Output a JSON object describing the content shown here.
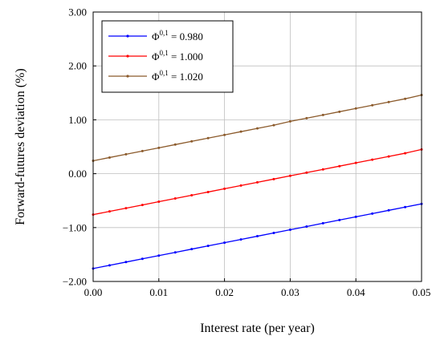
{
  "chart_data": {
    "type": "line",
    "xlabel": "Interest rate (per year)",
    "ylabel": "Forward-futures deviation (%)",
    "xlim": [
      0.0,
      0.05
    ],
    "ylim": [
      -2.0,
      3.0
    ],
    "x_ticks": [
      0.0,
      0.01,
      0.02,
      0.03,
      0.04,
      0.05
    ],
    "x_tick_labels": [
      "0.00",
      "0.01",
      "0.02",
      "0.03",
      "0.04",
      "0.05"
    ],
    "y_ticks": [
      -2.0,
      -1.0,
      0.0,
      1.0,
      2.0,
      3.0
    ],
    "y_tick_labels": [
      "−2.00",
      "−1.00",
      "0.00",
      "1.00",
      "2.00",
      "3.00"
    ],
    "grid": true,
    "legend_position": "top-left",
    "series": [
      {
        "name_base": "Φ",
        "name_sup": "0,1",
        "name_rest": " = 0.980",
        "color": "#0000ff",
        "x": [
          0.0,
          0.0025,
          0.005,
          0.0075,
          0.01,
          0.0125,
          0.015,
          0.0175,
          0.02,
          0.0225,
          0.025,
          0.0275,
          0.03,
          0.0325,
          0.035,
          0.0375,
          0.04,
          0.0425,
          0.045,
          0.0475,
          0.05
        ],
        "y": [
          -1.76,
          -1.7,
          -1.64,
          -1.58,
          -1.52,
          -1.46,
          -1.4,
          -1.34,
          -1.28,
          -1.22,
          -1.16,
          -1.1,
          -1.04,
          -0.98,
          -0.92,
          -0.86,
          -0.8,
          -0.74,
          -0.68,
          -0.62,
          -0.56
        ]
      },
      {
        "name_base": "Φ",
        "name_sup": "0,1",
        "name_rest": " = 1.000",
        "color": "#ff0000",
        "x": [
          0.0,
          0.0025,
          0.005,
          0.0075,
          0.01,
          0.0125,
          0.015,
          0.0175,
          0.02,
          0.0225,
          0.025,
          0.0275,
          0.03,
          0.0325,
          0.035,
          0.0375,
          0.04,
          0.0425,
          0.045,
          0.0475,
          0.05
        ],
        "y": [
          -0.76,
          -0.7,
          -0.64,
          -0.58,
          -0.52,
          -0.46,
          -0.4,
          -0.34,
          -0.28,
          -0.22,
          -0.16,
          -0.1,
          -0.04,
          0.02,
          0.08,
          0.14,
          0.2,
          0.26,
          0.32,
          0.38,
          0.45
        ]
      },
      {
        "name_base": "Φ",
        "name_sup": "0,1",
        "name_rest": " = 1.020",
        "color": "#8b5a2b",
        "x": [
          0.0,
          0.0025,
          0.005,
          0.0075,
          0.01,
          0.0125,
          0.015,
          0.0175,
          0.02,
          0.0225,
          0.025,
          0.0275,
          0.03,
          0.0325,
          0.035,
          0.0375,
          0.04,
          0.0425,
          0.045,
          0.0475,
          0.05
        ],
        "y": [
          0.24,
          0.3,
          0.36,
          0.42,
          0.48,
          0.54,
          0.6,
          0.66,
          0.72,
          0.78,
          0.84,
          0.9,
          0.97,
          1.03,
          1.09,
          1.15,
          1.21,
          1.27,
          1.33,
          1.39,
          1.46
        ]
      }
    ]
  }
}
